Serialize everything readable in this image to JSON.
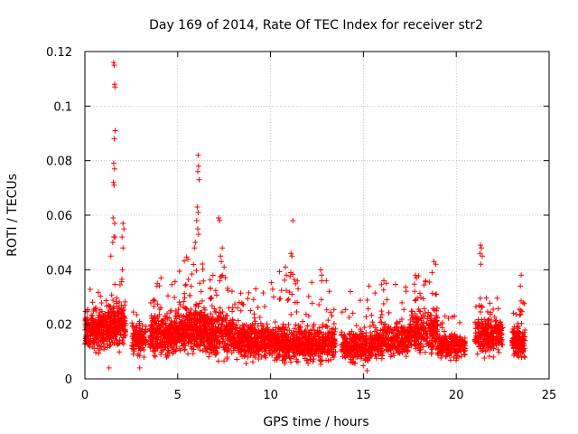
{
  "chart_data": {
    "type": "scatter",
    "title": "Day 169 of 2014, Rate Of TEC Index for receiver str2",
    "xlabel": "GPS time / hours",
    "ylabel": "ROTI / TECUs",
    "xlim": [
      0,
      25
    ],
    "ylim": [
      0,
      0.12
    ],
    "x_ticks": [
      0,
      5,
      10,
      15,
      20,
      25
    ],
    "y_ticks": [
      0,
      0.02,
      0.04,
      0.06,
      0.08,
      0.1,
      0.12
    ],
    "x_tick_labels": [
      "0",
      "5",
      "10",
      "15",
      "20",
      "25"
    ],
    "y_tick_labels": [
      "0",
      "0.02",
      "0.04",
      "0.06",
      "0.08",
      "0.1",
      "0.12"
    ],
    "grid": true,
    "marker": "+",
    "color": "#ff0000",
    "series": [
      {
        "name": "ROTI",
        "segments": [
          {
            "x_start": 0.0,
            "x_end": 1.2,
            "base": 0.018,
            "spread": 0.01,
            "peak": 0.034,
            "n": 260
          },
          {
            "x_start": 1.2,
            "x_end": 2.2,
            "base": 0.02,
            "spread": 0.012,
            "peak": 0.04,
            "n": 220
          },
          {
            "x_start": 2.5,
            "x_end": 3.3,
            "base": 0.014,
            "spread": 0.008,
            "peak": 0.028,
            "n": 120
          },
          {
            "x_start": 3.5,
            "x_end": 5.0,
            "base": 0.016,
            "spread": 0.01,
            "peak": 0.036,
            "n": 320
          },
          {
            "x_start": 5.0,
            "x_end": 6.5,
            "base": 0.018,
            "spread": 0.012,
            "peak": 0.045,
            "n": 360
          },
          {
            "x_start": 6.5,
            "x_end": 8.0,
            "base": 0.016,
            "spread": 0.011,
            "peak": 0.04,
            "n": 320
          },
          {
            "x_start": 8.0,
            "x_end": 10.0,
            "base": 0.014,
            "spread": 0.009,
            "peak": 0.032,
            "n": 380
          },
          {
            "x_start": 10.0,
            "x_end": 11.5,
            "base": 0.013,
            "spread": 0.009,
            "peak": 0.04,
            "n": 300
          },
          {
            "x_start": 11.5,
            "x_end": 13.5,
            "base": 0.013,
            "spread": 0.009,
            "peak": 0.036,
            "n": 360
          },
          {
            "x_start": 13.8,
            "x_end": 15.5,
            "base": 0.012,
            "spread": 0.008,
            "peak": 0.03,
            "n": 300
          },
          {
            "x_start": 15.5,
            "x_end": 17.5,
            "base": 0.014,
            "spread": 0.009,
            "peak": 0.036,
            "n": 330
          },
          {
            "x_start": 17.5,
            "x_end": 19.0,
            "base": 0.017,
            "spread": 0.01,
            "peak": 0.038,
            "n": 280
          },
          {
            "x_start": 19.0,
            "x_end": 20.5,
            "base": 0.012,
            "spread": 0.006,
            "peak": 0.024,
            "n": 220
          },
          {
            "x_start": 21.0,
            "x_end": 22.5,
            "base": 0.016,
            "spread": 0.009,
            "peak": 0.03,
            "n": 260
          },
          {
            "x_start": 23.0,
            "x_end": 23.7,
            "base": 0.014,
            "spread": 0.008,
            "peak": 0.03,
            "n": 150
          }
        ],
        "spikes": [
          [
            1.55,
            0.116
          ],
          [
            1.58,
            0.115
          ],
          [
            1.6,
            0.108
          ],
          [
            1.62,
            0.107
          ],
          [
            1.63,
            0.091
          ],
          [
            1.58,
            0.088
          ],
          [
            1.55,
            0.079
          ],
          [
            1.6,
            0.077
          ],
          [
            1.54,
            0.072
          ],
          [
            1.57,
            0.071
          ],
          [
            1.52,
            0.059
          ],
          [
            1.6,
            0.057
          ],
          [
            1.56,
            0.052
          ],
          [
            1.62,
            0.052
          ],
          [
            1.5,
            0.05
          ],
          [
            2.05,
            0.057
          ],
          [
            2.1,
            0.055
          ],
          [
            2.0,
            0.052
          ],
          [
            2.05,
            0.048
          ],
          [
            2.02,
            0.04
          ],
          [
            1.4,
            0.045
          ],
          [
            6.1,
            0.082
          ],
          [
            6.12,
            0.078
          ],
          [
            6.08,
            0.076
          ],
          [
            6.15,
            0.073
          ],
          [
            6.05,
            0.063
          ],
          [
            6.1,
            0.061
          ],
          [
            6.02,
            0.058
          ],
          [
            6.08,
            0.055
          ],
          [
            6.12,
            0.053
          ],
          [
            5.95,
            0.05
          ],
          [
            5.9,
            0.048
          ],
          [
            7.2,
            0.059
          ],
          [
            7.25,
            0.058
          ],
          [
            7.4,
            0.048
          ],
          [
            7.3,
            0.045
          ],
          [
            7.35,
            0.043
          ],
          [
            7.5,
            0.041
          ],
          [
            11.2,
            0.058
          ],
          [
            11.1,
            0.046
          ],
          [
            11.15,
            0.045
          ],
          [
            10.8,
            0.041
          ],
          [
            10.85,
            0.038
          ],
          [
            12.7,
            0.04
          ],
          [
            12.75,
            0.038
          ],
          [
            13.0,
            0.036
          ],
          [
            17.8,
            0.038
          ],
          [
            17.85,
            0.037
          ],
          [
            18.8,
            0.043
          ],
          [
            18.9,
            0.042
          ],
          [
            18.7,
            0.039
          ],
          [
            21.3,
            0.049
          ],
          [
            21.35,
            0.048
          ],
          [
            21.28,
            0.046
          ],
          [
            21.4,
            0.045
          ],
          [
            21.32,
            0.042
          ],
          [
            23.5,
            0.038
          ],
          [
            23.45,
            0.034
          ],
          [
            9.2,
            0.033
          ],
          [
            15.3,
            0.034
          ],
          [
            16.1,
            0.036
          ],
          [
            3.9,
            0.035
          ],
          [
            4.1,
            0.037
          ],
          [
            14.3,
            0.032
          ],
          [
            2.95,
            0.004
          ],
          [
            1.3,
            0.004
          ],
          [
            15.2,
            0.003
          ],
          [
            22.0,
            0.008
          ]
        ]
      }
    ]
  }
}
